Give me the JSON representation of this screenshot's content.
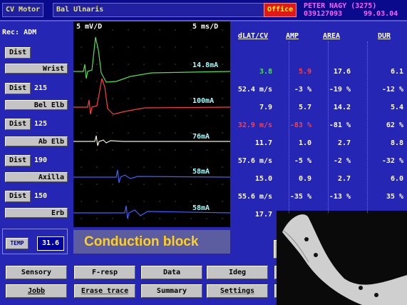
{
  "header": {
    "mode": "CV Motor",
    "nerve": "Bal Ulnaris",
    "location": "Office",
    "patient": "PETER NAGY (3275)",
    "id": "039127093",
    "date": "99.03.04"
  },
  "left_panel": {
    "rec": "Rec: ADM",
    "items": [
      {
        "label": "Dist"
      },
      {
        "label": "Wrist"
      },
      {
        "label": "Dist",
        "distance": 215
      },
      {
        "label": "Bel Elb"
      },
      {
        "label": "Dist",
        "distance": 125
      },
      {
        "label": "Ab Elb"
      },
      {
        "label": "Dist",
        "distance": 190
      },
      {
        "label": "Axilla"
      },
      {
        "label": "Dist",
        "distance": 150
      },
      {
        "label": "Erb"
      }
    ],
    "temp": {
      "label": "TEMP",
      "value": 31.6
    }
  },
  "traces": {
    "sensitivity": "5 mV/D",
    "sweep": "5 ms/D",
    "stimuli": [
      "14.8mA",
      "100mA",
      "76mA",
      "58mA",
      "58mA"
    ]
  },
  "table": {
    "columns": [
      "dLAT/CV",
      "AMP",
      "AREA",
      "DUR"
    ],
    "rows": [
      [
        "3.8",
        "5.9",
        "17.6",
        "6.1"
      ],
      [
        "52.4 m/s",
        "-3 %",
        "-19 %",
        "-12 %"
      ],
      [
        "7.9",
        "5.7",
        "14.2",
        "5.4"
      ],
      [
        "32.9 m/s",
        "-83 %",
        "-81 %",
        "62 %"
      ],
      [
        "11.7",
        "1.0",
        "2.7",
        "8.8"
      ],
      [
        "57.6 m/s",
        "-5 %",
        "-2 %",
        "-32 %"
      ],
      [
        "15.0",
        "0.9",
        "2.7",
        "6.0"
      ],
      [
        "55.6 m/s",
        "-35 %",
        "-13 %",
        "35 %"
      ],
      [
        "17.7"
      ]
    ]
  },
  "annotation": "Conduction block",
  "buttons": [
    [
      "Sensory",
      "F-resp",
      "Data",
      "Ideg"
    ],
    [
      "Jobb",
      "Erase trace",
      "Summary",
      "Settings"
    ]
  ]
}
